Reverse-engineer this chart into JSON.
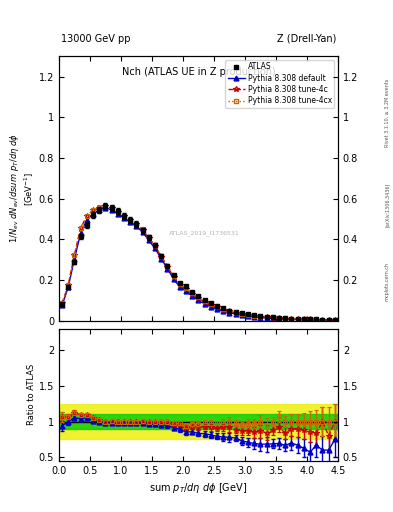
{
  "title_left": "13000 GeV pp",
  "title_right": "Z (Drell-Yan)",
  "plot_title": "Nch (ATLAS UE in Z production)",
  "ylabel_main": "1/N_{ev} dN_{ev}/dsum p_T/d\\eta d\\phi",
  "ylabel_ratio": "Ratio to ATLAS",
  "xlabel": "sum p_T/d\\eta d\\phi [GeV]",
  "rivet_label": "Rivet 3.1.10, ≥ 3.2M events",
  "arxiv_label": "[arXiv:1306.3436]",
  "mcplots_label": "mcplots.cern.ch",
  "watermark": "ATLAS_2019_I1736531",
  "xlim": [
    0,
    4.5
  ],
  "ylim_main": [
    0,
    1.3
  ],
  "ylim_ratio": [
    0.45,
    2.3
  ],
  "x_data": [
    0.05,
    0.15,
    0.25,
    0.35,
    0.45,
    0.55,
    0.65,
    0.75,
    0.85,
    0.95,
    1.05,
    1.15,
    1.25,
    1.35,
    1.45,
    1.55,
    1.65,
    1.75,
    1.85,
    1.95,
    2.05,
    2.15,
    2.25,
    2.35,
    2.45,
    2.55,
    2.65,
    2.75,
    2.85,
    2.95,
    3.05,
    3.15,
    3.25,
    3.35,
    3.45,
    3.55,
    3.65,
    3.75,
    3.85,
    3.95,
    4.05,
    4.15,
    4.25,
    4.35,
    4.45
  ],
  "atlas_y": [
    0.08,
    0.165,
    0.29,
    0.415,
    0.47,
    0.52,
    0.545,
    0.565,
    0.555,
    0.54,
    0.515,
    0.495,
    0.475,
    0.445,
    0.41,
    0.37,
    0.32,
    0.27,
    0.225,
    0.185,
    0.17,
    0.14,
    0.12,
    0.1,
    0.085,
    0.072,
    0.06,
    0.05,
    0.043,
    0.037,
    0.031,
    0.026,
    0.022,
    0.019,
    0.016,
    0.013,
    0.012,
    0.01,
    0.009,
    0.008,
    0.007,
    0.006,
    0.005,
    0.005,
    0.004
  ],
  "atlas_err": [
    0.006,
    0.008,
    0.01,
    0.012,
    0.013,
    0.014,
    0.015,
    0.015,
    0.015,
    0.014,
    0.014,
    0.013,
    0.013,
    0.012,
    0.011,
    0.01,
    0.009,
    0.008,
    0.007,
    0.006,
    0.006,
    0.005,
    0.005,
    0.004,
    0.004,
    0.003,
    0.003,
    0.003,
    0.002,
    0.002,
    0.002,
    0.002,
    0.002,
    0.002,
    0.001,
    0.001,
    0.001,
    0.001,
    0.001,
    0.001,
    0.001,
    0.001,
    0.001,
    0.001,
    0.001
  ],
  "pythia_default_y": [
    0.075,
    0.165,
    0.305,
    0.43,
    0.495,
    0.525,
    0.545,
    0.555,
    0.545,
    0.525,
    0.505,
    0.485,
    0.465,
    0.435,
    0.395,
    0.355,
    0.305,
    0.255,
    0.205,
    0.165,
    0.145,
    0.12,
    0.1,
    0.083,
    0.069,
    0.057,
    0.047,
    0.039,
    0.033,
    0.027,
    0.022,
    0.018,
    0.015,
    0.013,
    0.011,
    0.009,
    0.008,
    0.007,
    0.006,
    0.005,
    0.004,
    0.004,
    0.003,
    0.003,
    0.003
  ],
  "pythia_4c_y": [
    0.085,
    0.175,
    0.325,
    0.455,
    0.515,
    0.545,
    0.555,
    0.565,
    0.555,
    0.535,
    0.515,
    0.495,
    0.475,
    0.445,
    0.405,
    0.365,
    0.315,
    0.265,
    0.215,
    0.175,
    0.155,
    0.13,
    0.11,
    0.093,
    0.078,
    0.065,
    0.055,
    0.046,
    0.038,
    0.032,
    0.027,
    0.022,
    0.019,
    0.016,
    0.014,
    0.012,
    0.01,
    0.009,
    0.008,
    0.007,
    0.006,
    0.005,
    0.005,
    0.004,
    0.004
  ],
  "pythia_4cx_y": [
    0.085,
    0.175,
    0.325,
    0.455,
    0.515,
    0.545,
    0.56,
    0.565,
    0.56,
    0.54,
    0.515,
    0.495,
    0.475,
    0.45,
    0.41,
    0.37,
    0.32,
    0.27,
    0.22,
    0.18,
    0.16,
    0.135,
    0.115,
    0.098,
    0.083,
    0.07,
    0.059,
    0.05,
    0.042,
    0.035,
    0.03,
    0.025,
    0.022,
    0.018,
    0.016,
    0.014,
    0.012,
    0.01,
    0.009,
    0.008,
    0.007,
    0.006,
    0.005,
    0.005,
    0.004
  ],
  "ratio_band_green_lo": 0.9,
  "ratio_band_green_hi": 1.1,
  "ratio_band_yellow_lo": 0.75,
  "ratio_band_yellow_hi": 1.25,
  "color_atlas": "#000000",
  "color_default": "#0000cc",
  "color_4c": "#cc0000",
  "color_4cx": "#cc6600",
  "color_green_band": "#00cc00",
  "color_yellow_band": "#eeee00",
  "legend_entries": [
    "ATLAS",
    "Pythia 8.308 default",
    "Pythia 8.308 tune-4c",
    "Pythia 8.308 tune-4cx"
  ]
}
